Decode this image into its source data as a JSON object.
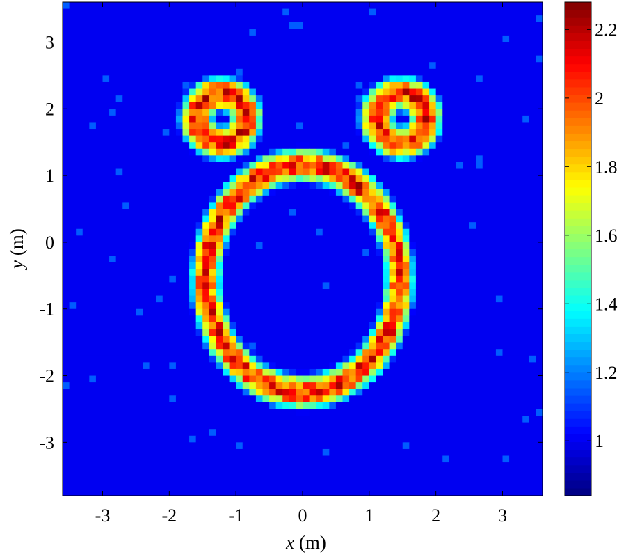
{
  "chart_data": {
    "type": "heatmap",
    "xlabel_var": "x",
    "xlabel_unit": " (m)",
    "ylabel_var": "y",
    "ylabel_unit": " (m)",
    "xlim": [
      -3.6,
      3.6
    ],
    "ylim": [
      -3.8,
      3.6
    ],
    "xticks": [
      -3,
      -2,
      -1,
      0,
      1,
      2,
      3
    ],
    "yticks": [
      -3,
      -2,
      -1,
      0,
      1,
      2,
      3
    ],
    "grid": false,
    "colorbar": {
      "colormap": "jet",
      "range": [
        0.84,
        2.28
      ],
      "ticks": [
        1,
        1.2,
        1.4,
        1.6,
        1.8,
        2,
        2.2
      ]
    },
    "background_value": 1.0,
    "structures": [
      {
        "name": "large-ring",
        "center": [
          0.0,
          -0.55
        ],
        "radius_x": 1.45,
        "radius_y": 1.7,
        "width": 0.28,
        "peak": 2.1
      },
      {
        "name": "left-ring",
        "center": [
          -1.22,
          1.86
        ],
        "radius": 0.37,
        "width": 0.3,
        "peak": 2.1
      },
      {
        "name": "right-ring",
        "center": [
          1.48,
          1.86
        ],
        "radius": 0.37,
        "width": 0.3,
        "peak": 2.1
      }
    ]
  }
}
